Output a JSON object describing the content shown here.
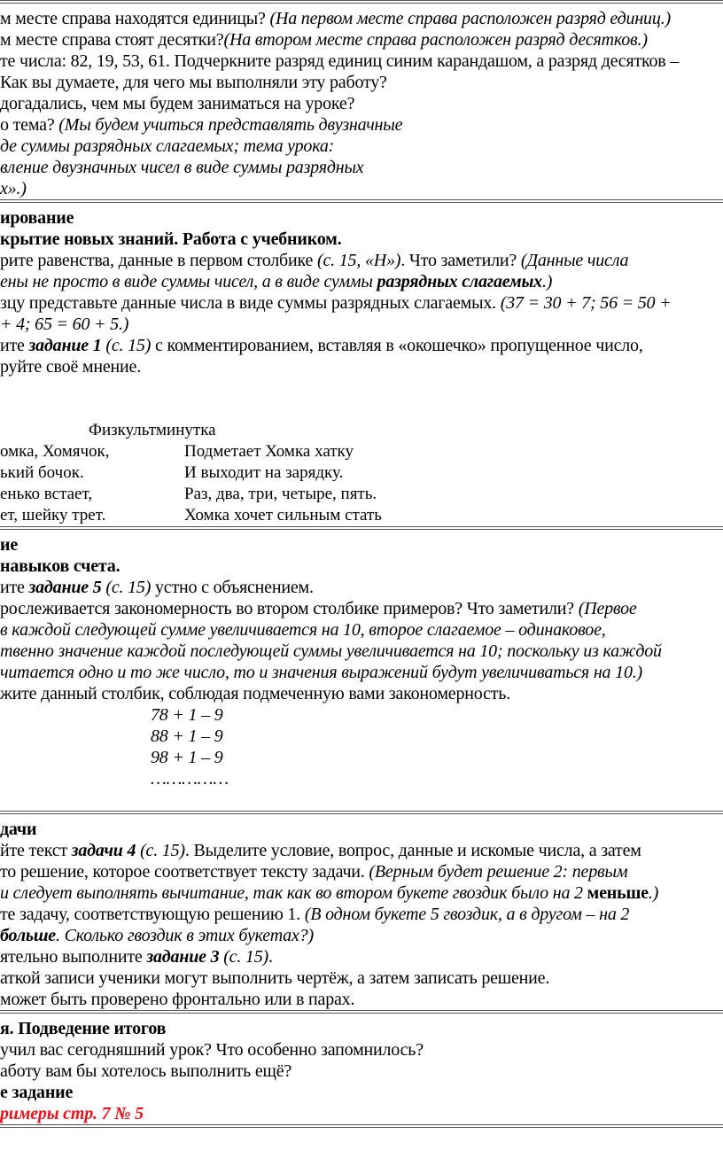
{
  "sections": [
    {
      "lines": [
        [
          {
            "t": "м месте справа находятся единицы? ",
            "s": ""
          },
          {
            "t": "(На первом месте справа расположен разряд единиц.)",
            "s": "i"
          }
        ],
        [
          {
            "t": "м месте справа стоят десятки?",
            "s": ""
          },
          {
            "t": "(На втором месте справа расположен разряд десятков.)",
            "s": "i"
          }
        ],
        [
          {
            "t": "те числа: 82, 19, 53, 61. Подчеркните разряд единиц синим карандашом, а разряд десятков –",
            "s": ""
          }
        ],
        [
          {
            "t": "Как вы думаете, для чего мы выполняли эту работу?",
            "s": ""
          }
        ],
        [
          {
            "t": "догадались, чем мы будем заниматься на уроке?",
            "s": ""
          }
        ],
        [
          {
            "t": "о тема? ",
            "s": ""
          },
          {
            "t": "(Мы будем учиться представлять двузначные",
            "s": "i"
          }
        ],
        [
          {
            "t": "де суммы разрядных слагаемых; тема урока:",
            "s": "i"
          }
        ],
        [
          {
            "t": "вление двузначных чисел в виде суммы разрядных",
            "s": "i"
          }
        ],
        [
          {
            "t": "х».)",
            "s": "i"
          }
        ]
      ]
    },
    {
      "lines": [
        [
          {
            "t": "ирование",
            "s": "b"
          }
        ],
        [
          {
            "t": "крытие новых знаний. Работа с учебником.",
            "s": "b"
          }
        ],
        [
          {
            "t": "рите равенства, данные в первом столбике ",
            "s": ""
          },
          {
            "t": "(с. 15, «Н»)",
            "s": "i"
          },
          {
            "t": ". Что заметили? ",
            "s": ""
          },
          {
            "t": "(Данные числа",
            "s": "i"
          }
        ],
        [
          {
            "t": "ены не просто в виде суммы чисел, а в виде суммы ",
            "s": "i"
          },
          {
            "t": "разрядных слагаемых",
            "s": "bi"
          },
          {
            "t": ".)",
            "s": "i"
          }
        ],
        [
          {
            "t": "зцу представьте данные числа в виде суммы разрядных слагаемых. ",
            "s": ""
          },
          {
            "t": "(37 = 30 + 7;   56 = 50 +",
            "s": "i"
          }
        ],
        [
          {
            "t": " + 4;    65 = 60 + 5.)",
            "s": "i"
          }
        ],
        [
          {
            "t": "ите ",
            "s": ""
          },
          {
            "t": "задание 1",
            "s": "bi"
          },
          {
            "t": " (с. 15)",
            "s": "i"
          },
          {
            "t": " с комментированием, вставляя в «окошечко» пропущенное число,",
            "s": ""
          }
        ],
        [
          {
            "t": "руйте своё мнение.",
            "s": ""
          }
        ]
      ],
      "physkult": {
        "title": "Физкультминутка",
        "rows": [
          [
            "омка, Хомячок,",
            "Подметает Хомка хатку"
          ],
          [
            "ький бочок.",
            "И выходит на зарядку."
          ],
          [
            "енько встает,",
            "Раз, два, три, четыре, пять."
          ],
          [
            "ет, шейку трет.",
            " Хомка хочет сильным стать"
          ]
        ]
      }
    },
    {
      "lines": [
        [
          {
            "t": "ие",
            "s": "b"
          }
        ],
        [
          {
            "t": "навыков счета.",
            "s": "b"
          }
        ],
        [
          {
            "t": "ите ",
            "s": ""
          },
          {
            "t": "задание 5",
            "s": "bi"
          },
          {
            "t": " (с. 15)",
            "s": "i"
          },
          {
            "t": " устно с объяснением.",
            "s": ""
          }
        ],
        [
          {
            "t": "рослеживается закономерность во втором столбике примеров? Что заметили? ",
            "s": ""
          },
          {
            "t": "(Первое",
            "s": "i"
          }
        ],
        [
          {
            "t": " в каждой следующей сумме увеличивается на 10, второе слагаемое – одинаковое,",
            "s": "i"
          }
        ],
        [
          {
            "t": "твенно значение каждой последующей суммы увеличивается на 10; поскольку из каждой",
            "s": "i"
          }
        ],
        [
          {
            "t": "читается одно и то же число, то и значения выражений будут увеличиваться на 10.)",
            "s": "i"
          }
        ],
        [
          {
            "t": "жите данный столбик, соблюдая подмеченную вами закономерность.",
            "s": ""
          }
        ]
      ],
      "math": [
        "78 + 1 – 9",
        "88 + 1 – 9",
        "98 + 1 – 9",
        "……………"
      ]
    },
    {
      "lines": [
        [
          {
            "t": "дачи",
            "s": "b"
          }
        ],
        [
          {
            "t": "йте текст ",
            "s": ""
          },
          {
            "t": "задачи 4",
            "s": "bi"
          },
          {
            "t": " (с. 15)",
            "s": "i"
          },
          {
            "t": ". Выделите условие, вопрос, данные и искомые числа, а затем",
            "s": ""
          }
        ],
        [
          {
            "t": "то решение, которое соответствует тексту задачи. ",
            "s": ""
          },
          {
            "t": "(Верным будет решение 2: первым",
            "s": "i"
          }
        ],
        [
          {
            "t": "и следует выполнять вычитание, так как во втором букете гвоздик было на 2 ",
            "s": "i"
          },
          {
            "t": "меньше",
            "s": "b"
          },
          {
            "t": ".)",
            "s": "i"
          }
        ],
        [
          {
            "t": "те задачу, соответствующую решению 1. ",
            "s": ""
          },
          {
            "t": "(В одном букете 5 гвоздик, а в другом – на 2",
            "s": "i"
          }
        ],
        [
          {
            "t": "больше",
            "s": "bi"
          },
          {
            "t": ". Сколько гвоздик в этих букетах?)",
            "s": "i"
          }
        ],
        [
          {
            "t": "ятельно выполните ",
            "s": ""
          },
          {
            "t": "задание 3",
            "s": "bi"
          },
          {
            "t": " (с. 15)",
            "s": "i"
          },
          {
            "t": ".",
            "s": ""
          }
        ],
        [
          {
            "t": "аткой записи ученики могут выполнить чертёж, а затем записать решение.",
            "s": ""
          }
        ],
        [
          {
            "t": "может быть проверено фронтально или в парах.",
            "s": ""
          }
        ]
      ]
    },
    {
      "lines": [
        [
          {
            "t": "я. Подведение итогов",
            "s": "b"
          }
        ],
        [
          {
            "t": "учил вас сегодняшний урок? Что особенно запомнилось?",
            "s": ""
          }
        ],
        [
          {
            "t": "аботу вам бы хотелось выполнить ещё?",
            "s": ""
          }
        ],
        [
          {
            "t": "е задание",
            "s": "b"
          }
        ],
        [
          {
            "t": "римеры стр. 7 № 5",
            "s": "r"
          }
        ]
      ]
    }
  ],
  "colors": {
    "homework_red": "#e8141b",
    "rule": "#555555"
  }
}
